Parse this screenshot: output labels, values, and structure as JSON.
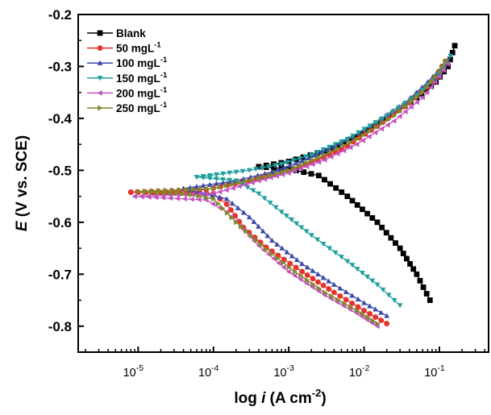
{
  "chart_data": {
    "type": "line",
    "title": "",
    "xlabel": {
      "pre": "log ",
      "italic": "i",
      "post": " (A cm",
      "sup": "-2",
      "close": ")"
    },
    "ylabel": {
      "italic": "E",
      "post": " (V vs. SCE)"
    },
    "x_scale": "log",
    "xlim": [
      1.6e-06,
      0.45
    ],
    "ylim": [
      -0.85,
      -0.2
    ],
    "x_ticks": [
      {
        "value": 1e-05,
        "base": "10",
        "exp": "-5"
      },
      {
        "value": 0.0001,
        "base": "10",
        "exp": "-4"
      },
      {
        "value": 0.001,
        "base": "10",
        "exp": "-3"
      },
      {
        "value": 0.01,
        "base": "10",
        "exp": "-2"
      },
      {
        "value": 0.1,
        "base": "10",
        "exp": "-1"
      }
    ],
    "y_ticks": [
      {
        "value": -0.2,
        "label": "-0.2"
      },
      {
        "value": -0.3,
        "label": "-0.3"
      },
      {
        "value": -0.4,
        "label": "-0.4"
      },
      {
        "value": -0.5,
        "label": "-0.5"
      },
      {
        "value": -0.6,
        "label": "-0.6"
      },
      {
        "value": -0.7,
        "label": "-0.7"
      },
      {
        "value": -0.8,
        "label": "-0.8"
      }
    ],
    "grid": false,
    "legend_position": "top-left",
    "series": [
      {
        "name": "Blank",
        "label": "Blank",
        "sup": "",
        "color": "#000000",
        "marker": "square",
        "cathodic": [
          [
            0.075,
            -0.75
          ],
          [
            0.05,
            -0.7
          ],
          [
            0.03,
            -0.65
          ],
          [
            0.015,
            -0.6
          ],
          [
            0.006,
            -0.55
          ],
          [
            0.0025,
            -0.51
          ],
          [
            0.001,
            -0.497
          ],
          [
            0.0004,
            -0.493
          ]
        ],
        "anodic": [
          [
            0.0004,
            -0.493
          ],
          [
            0.001,
            -0.483
          ],
          [
            0.003,
            -0.462
          ],
          [
            0.008,
            -0.435
          ],
          [
            0.02,
            -0.4
          ],
          [
            0.05,
            -0.36
          ],
          [
            0.09,
            -0.33
          ],
          [
            0.13,
            -0.3
          ],
          [
            0.16,
            -0.26
          ]
        ]
      },
      {
        "name": "50 mgL-1",
        "label": " 50  mgL",
        "sup": "-1",
        "color": "#e8312b",
        "marker": "circle",
        "cathodic": [
          [
            0.02,
            -0.795
          ],
          [
            0.01,
            -0.77
          ],
          [
            0.004,
            -0.735
          ],
          [
            0.0015,
            -0.695
          ],
          [
            0.0005,
            -0.648
          ],
          [
            0.00025,
            -0.61
          ],
          [
            0.00015,
            -0.565
          ],
          [
            0.0001,
            -0.545
          ],
          [
            2e-05,
            -0.543
          ],
          [
            8e-06,
            -0.542
          ]
        ],
        "anodic": [
          [
            8e-06,
            -0.542
          ],
          [
            8e-05,
            -0.537
          ],
          [
            0.0003,
            -0.52
          ],
          [
            0.0008,
            -0.505
          ],
          [
            0.002,
            -0.485
          ],
          [
            0.005,
            -0.46
          ],
          [
            0.015,
            -0.415
          ],
          [
            0.04,
            -0.37
          ],
          [
            0.08,
            -0.33
          ],
          [
            0.12,
            -0.29
          ]
        ]
      },
      {
        "name": "100 mgL-1",
        "label": "100  mgL",
        "sup": "-1",
        "color": "#3a4aa8",
        "marker": "triangle-up",
        "cathodic": [
          [
            0.02,
            -0.78
          ],
          [
            0.01,
            -0.755
          ],
          [
            0.004,
            -0.72
          ],
          [
            0.0015,
            -0.68
          ],
          [
            0.0006,
            -0.635
          ],
          [
            0.0003,
            -0.59
          ],
          [
            0.00015,
            -0.555
          ],
          [
            4e-05,
            -0.535
          ]
        ],
        "anodic": [
          [
            4e-05,
            -0.535
          ],
          [
            0.0002,
            -0.52
          ],
          [
            0.0006,
            -0.503
          ],
          [
            0.0015,
            -0.482
          ],
          [
            0.004,
            -0.455
          ],
          [
            0.012,
            -0.415
          ],
          [
            0.035,
            -0.37
          ],
          [
            0.07,
            -0.33
          ],
          [
            0.11,
            -0.3
          ]
        ]
      },
      {
        "name": "150 mgL-1",
        "label": "150  mgL",
        "sup": "-1",
        "color": "#1f9e9e",
        "marker": "triangle-down",
        "cathodic": [
          [
            0.03,
            -0.76
          ],
          [
            0.015,
            -0.72
          ],
          [
            0.006,
            -0.675
          ],
          [
            0.002,
            -0.625
          ],
          [
            0.0008,
            -0.58
          ],
          [
            0.0004,
            -0.545
          ],
          [
            0.0002,
            -0.52
          ],
          [
            6e-05,
            -0.513
          ]
        ],
        "anodic": [
          [
            6e-05,
            -0.513
          ],
          [
            0.0003,
            -0.5
          ],
          [
            0.0008,
            -0.488
          ],
          [
            0.002,
            -0.47
          ],
          [
            0.006,
            -0.44
          ],
          [
            0.02,
            -0.395
          ],
          [
            0.05,
            -0.355
          ],
          [
            0.1,
            -0.315
          ],
          [
            0.14,
            -0.28
          ]
        ]
      },
      {
        "name": "200 mgL-1",
        "label": "200  mgL",
        "sup": "-1",
        "color": "#c254c2",
        "marker": "triangle-left",
        "cathodic": [
          [
            0.015,
            -0.8
          ],
          [
            0.008,
            -0.775
          ],
          [
            0.003,
            -0.74
          ],
          [
            0.001,
            -0.695
          ],
          [
            0.0004,
            -0.645
          ],
          [
            0.00015,
            -0.58
          ],
          [
            8e-05,
            -0.557
          ],
          [
            9e-06,
            -0.55
          ]
        ],
        "anodic": [
          [
            9e-06,
            -0.55
          ],
          [
            0.0001,
            -0.545
          ],
          [
            0.0004,
            -0.52
          ],
          [
            0.001,
            -0.505
          ],
          [
            0.003,
            -0.48
          ],
          [
            0.008,
            -0.45
          ],
          [
            0.025,
            -0.405
          ],
          [
            0.06,
            -0.36
          ],
          [
            0.1,
            -0.32
          ],
          [
            0.13,
            -0.295
          ]
        ]
      },
      {
        "name": "250 mgL-1",
        "label": "250  mgL",
        "sup": "-1",
        "color": "#7f8a2a",
        "marker": "triangle-right",
        "cathodic": [
          [
            0.015,
            -0.795
          ],
          [
            0.008,
            -0.77
          ],
          [
            0.003,
            -0.735
          ],
          [
            0.0012,
            -0.695
          ],
          [
            0.0005,
            -0.652
          ],
          [
            0.0002,
            -0.6
          ],
          [
            0.0001,
            -0.555
          ],
          [
            4e-05,
            -0.545
          ],
          [
            1e-05,
            -0.541
          ]
        ],
        "anodic": [
          [
            1e-05,
            -0.541
          ],
          [
            0.0001,
            -0.535
          ],
          [
            0.0004,
            -0.515
          ],
          [
            0.001,
            -0.5
          ],
          [
            0.003,
            -0.47
          ],
          [
            0.008,
            -0.44
          ],
          [
            0.025,
            -0.395
          ],
          [
            0.06,
            -0.35
          ],
          [
            0.1,
            -0.31
          ],
          [
            0.12,
            -0.29
          ]
        ]
      }
    ]
  }
}
